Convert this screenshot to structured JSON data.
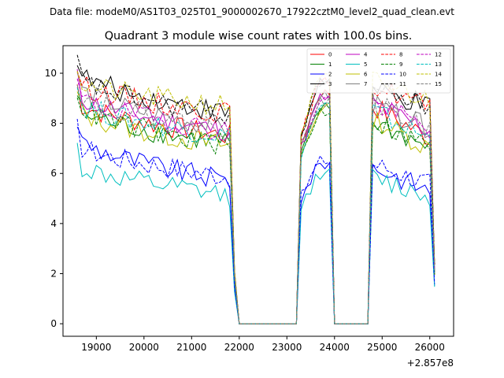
{
  "page": {
    "suptitle": "Data file: modeM0/AS1T03_025T01_9000002670_17922cztM0_level2_quad_clean.evt"
  },
  "chart_data": {
    "type": "line",
    "title": "Quadrant 3 module wise count rates with 100.0s bins.",
    "xlabel": "",
    "ylabel": "",
    "offset_label": "+2.857e8",
    "xlim": [
      18300,
      26500
    ],
    "ylim": [
      -0.5,
      11.1
    ],
    "xticks": [
      19000,
      20000,
      21000,
      22000,
      23000,
      24000,
      25000,
      26000
    ],
    "yticks": [
      0,
      2,
      4,
      6,
      8,
      10
    ],
    "xtick_labels": [
      "19000",
      "20000",
      "21000",
      "22000",
      "23000",
      "24000",
      "25000",
      "26000"
    ],
    "ytick_labels": [
      "0",
      "2",
      "4",
      "6",
      "8",
      "10"
    ],
    "legend_position": "upper right",
    "legend_columns": 4,
    "segments": [
      {
        "start": 18600,
        "end": 21800,
        "dropTo": 22000
      },
      {
        "start": 22000,
        "end": 23200,
        "gap": true
      },
      {
        "start": 23200,
        "end": 23900,
        "dropTo": 24000
      },
      {
        "start": 24000,
        "end": 24700,
        "gap": true
      },
      {
        "start": 24700,
        "end": 26100
      }
    ],
    "series": [
      {
        "name": "0",
        "color": "#ff0000",
        "dash": false,
        "base1": 8.9,
        "end1": 7.5,
        "peak2": 9.2,
        "start3": 8.7,
        "end3": 7.4
      },
      {
        "name": "1",
        "color": "#008000",
        "dash": false,
        "base1": 8.6,
        "end1": 7.2,
        "peak2": 8.6,
        "start3": 8.1,
        "end3": 7.0
      },
      {
        "name": "2",
        "color": "#0000ff",
        "dash": false,
        "base1": 7.5,
        "end1": 5.7,
        "peak2": 6.4,
        "start3": 6.3,
        "end3": 5.3
      },
      {
        "name": "3",
        "color": "#000000",
        "dash": false,
        "base1": 10.1,
        "end1": 8.4,
        "peak2": 9.7,
        "start3": 9.3,
        "end3": 8.6
      },
      {
        "name": "4",
        "color": "#bf00bf",
        "dash": false,
        "base1": 9.2,
        "end1": 7.7,
        "peak2": 9.0,
        "start3": 8.8,
        "end3": 7.7
      },
      {
        "name": "5",
        "color": "#00bfbf",
        "dash": false,
        "base1": 6.4,
        "end1": 5.1,
        "peak2": 6.0,
        "start3": 5.8,
        "end3": 5.1
      },
      {
        "name": "6",
        "color": "#bfbf00",
        "dash": false,
        "base1": 8.6,
        "end1": 7.1,
        "peak2": 8.6,
        "start3": 8.2,
        "end3": 7.0
      },
      {
        "name": "7",
        "color": "#808080",
        "dash": false,
        "base1": 9.5,
        "end1": 7.8,
        "peak2": 9.1,
        "start3": 8.7,
        "end3": 7.8
      },
      {
        "name": "8",
        "color": "#ff0000",
        "dash": true,
        "base1": 9.7,
        "end1": 8.4,
        "peak2": 9.6,
        "start3": 9.5,
        "end3": 8.7
      },
      {
        "name": "9",
        "color": "#008000",
        "dash": true,
        "base1": 8.8,
        "end1": 7.1,
        "peak2": 8.5,
        "start3": 8.1,
        "end3": 7.1
      },
      {
        "name": "10",
        "color": "#0000ff",
        "dash": true,
        "base1": 7.2,
        "end1": 5.9,
        "peak2": 6.5,
        "start3": 6.4,
        "end3": 5.6
      },
      {
        "name": "11",
        "color": "#000000",
        "dash": true,
        "base1": 9.9,
        "end1": 8.3,
        "peak2": 9.7,
        "start3": 9.4,
        "end3": 8.7
      },
      {
        "name": "12",
        "color": "#bf00bf",
        "dash": true,
        "base1": 9.1,
        "end1": 7.7,
        "peak2": 9.0,
        "start3": 8.8,
        "end3": 7.8
      },
      {
        "name": "13",
        "color": "#00bfbf",
        "dash": true,
        "base1": 8.9,
        "end1": 7.5,
        "peak2": 8.7,
        "start3": 8.5,
        "end3": 7.4
      },
      {
        "name": "14",
        "color": "#bfbf00",
        "dash": true,
        "base1": 9.7,
        "end1": 8.7,
        "peak2": 9.8,
        "start3": 9.7,
        "end3": 8.9
      },
      {
        "name": "15",
        "color": "#808080",
        "dash": true,
        "base1": 9.3,
        "end1": 7.8,
        "peak2": 8.9,
        "start3": 8.8,
        "end3": 7.8
      }
    ]
  }
}
